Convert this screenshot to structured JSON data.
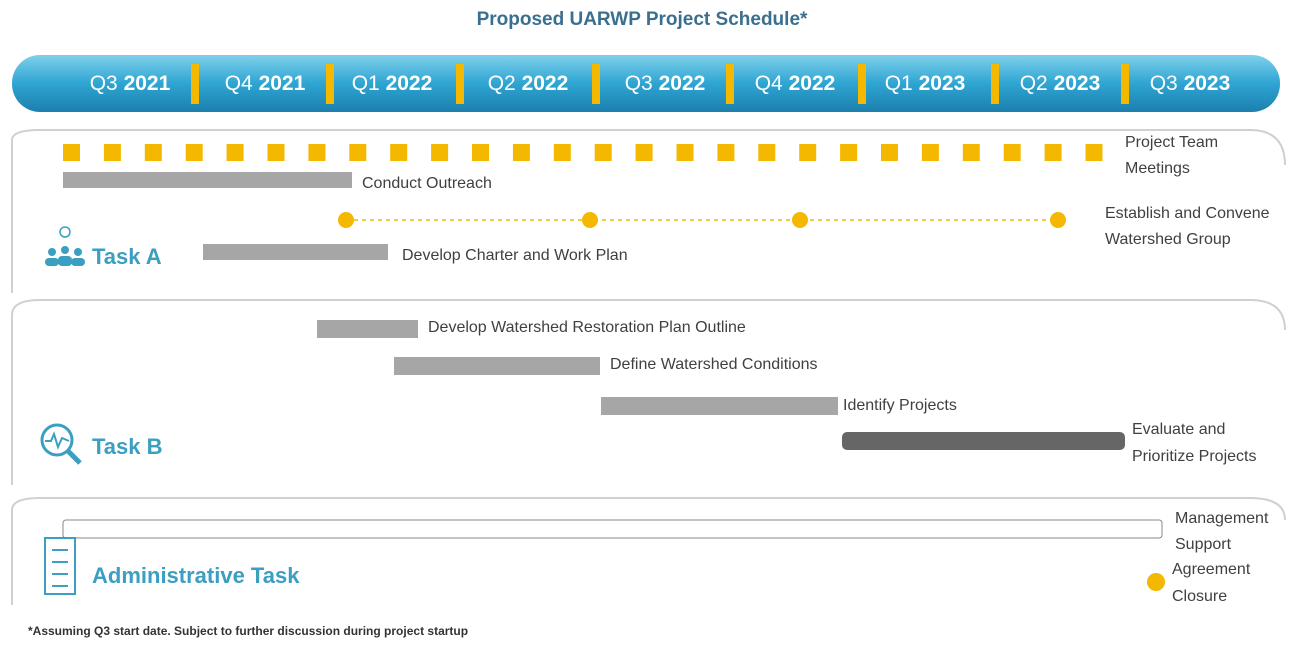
{
  "title": "Proposed UARWP Project Schedule*",
  "quarters": [
    {
      "q": "Q3",
      "year": "2021"
    },
    {
      "q": "Q4",
      "year": "2021"
    },
    {
      "q": "Q1",
      "year": "2022"
    },
    {
      "q": "Q2",
      "year": "2022"
    },
    {
      "q": "Q3",
      "year": "2022"
    },
    {
      "q": "Q4",
      "year": "2022"
    },
    {
      "q": "Q1",
      "year": "2023"
    },
    {
      "q": "Q2",
      "year": "2023"
    },
    {
      "q": "Q3",
      "year": "2023"
    }
  ],
  "task_a": {
    "label": "Task A",
    "meetings": [
      "Project Team",
      "Meetings"
    ],
    "outreach": "Conduct Outreach",
    "watershed_group": [
      "Establish and Convene",
      "Watershed Group"
    ],
    "charter": "Develop Charter and Work Plan"
  },
  "task_b": {
    "label": "Task B",
    "outline": "Develop Watershed Restoration Plan Outline",
    "conditions": "Define Watershed Conditions",
    "projects": "Identify Projects",
    "evaluate": [
      "Evaluate and",
      "Prioritize Projects"
    ]
  },
  "admin": {
    "label": "Administrative Task",
    "support": [
      "Management",
      "Support"
    ],
    "closure": [
      "Agreement",
      "Closure"
    ]
  },
  "footnote": "*Assuming Q3 start date. Subject to further discussion during project startup"
}
